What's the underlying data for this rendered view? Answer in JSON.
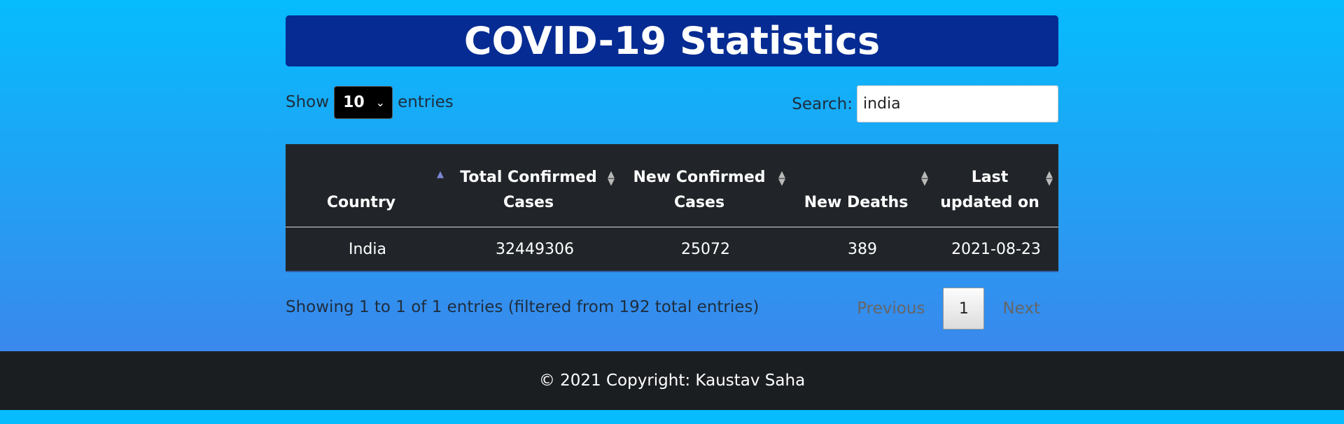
{
  "title": "COVID-19 Statistics",
  "length_control": {
    "show_label": "Show",
    "selected": "10",
    "entries_label": "entries"
  },
  "search": {
    "label": "Search:",
    "value": "india"
  },
  "table": {
    "headers": [
      "Country",
      "Total Confirmed Cases",
      "New Confirmed Cases",
      "New Deaths",
      "Last updated on"
    ],
    "rows": [
      [
        "India",
        "32449306",
        "25072",
        "389",
        "2021-08-23"
      ]
    ]
  },
  "info": "Showing 1 to 1 of 1 entries (filtered from 192 total entries)",
  "pagination": {
    "previous": "Previous",
    "current": "1",
    "next": "Next"
  },
  "footer": "© 2021 Copyright: Kaustav Saha",
  "colors": {
    "background_top": "#06bcfd",
    "background_bottom": "#3a88ec",
    "title_bar": "#062c93",
    "table_bg": "#212529",
    "footer_bg": "#1b1e21"
  }
}
